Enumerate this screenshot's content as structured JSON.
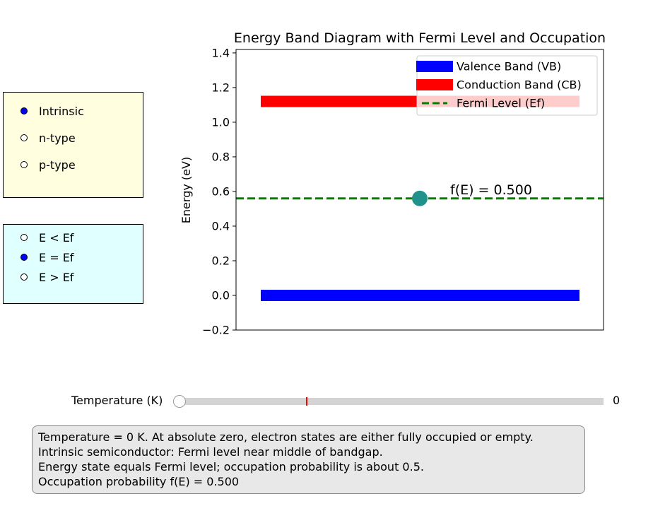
{
  "semiconductor_type": {
    "options": [
      {
        "label": "Intrinsic",
        "selected": true
      },
      {
        "label": "n-type",
        "selected": false
      },
      {
        "label": "p-type",
        "selected": false
      }
    ]
  },
  "energy_state": {
    "options": [
      {
        "label": "E < Ef",
        "selected": false
      },
      {
        "label": "E = Ef",
        "selected": true
      },
      {
        "label": "E > Ef",
        "selected": false
      }
    ]
  },
  "chart_data": {
    "type": "line",
    "title": "Energy Band Diagram with Fermi Level and Occupation",
    "ylabel": "Energy (eV)",
    "xlabel": "",
    "ylim": [
      -0.2,
      1.42
    ],
    "yticks": [
      "−0.2",
      "0.0",
      "0.2",
      "0.4",
      "0.6",
      "0.8",
      "1.0",
      "1.2",
      "1.4"
    ],
    "ytick_values": [
      -0.2,
      0.0,
      0.2,
      0.4,
      0.6,
      0.8,
      1.0,
      1.2,
      1.4
    ],
    "grid": false,
    "legend_position": "upper right",
    "series": [
      {
        "name": "Valence Band (VB)",
        "energy": 0.0,
        "color": "#0000ff",
        "style": "solid"
      },
      {
        "name": "Conduction Band (CB)",
        "energy": 1.12,
        "color": "#ff0000",
        "style": "solid"
      },
      {
        "name": "Fermi Level (Ef)",
        "energy": 0.56,
        "color": "#008000",
        "style": "dashed"
      }
    ],
    "state_point": {
      "energy": 0.56,
      "color": "#21918c"
    },
    "annotation": "f(E) = 0.500"
  },
  "slider": {
    "label": "Temperature (K)",
    "value": "0"
  },
  "info": {
    "line1": "Temperature = 0 K. At absolute zero, electron states are either fully occupied or empty.",
    "line2": "Intrinsic semiconductor: Fermi level near middle of bandgap.",
    "line3": "Energy state equals Fermi level; occupation probability is about 0.5.",
    "line4": "Occupation probability f(E) = 0.500"
  }
}
